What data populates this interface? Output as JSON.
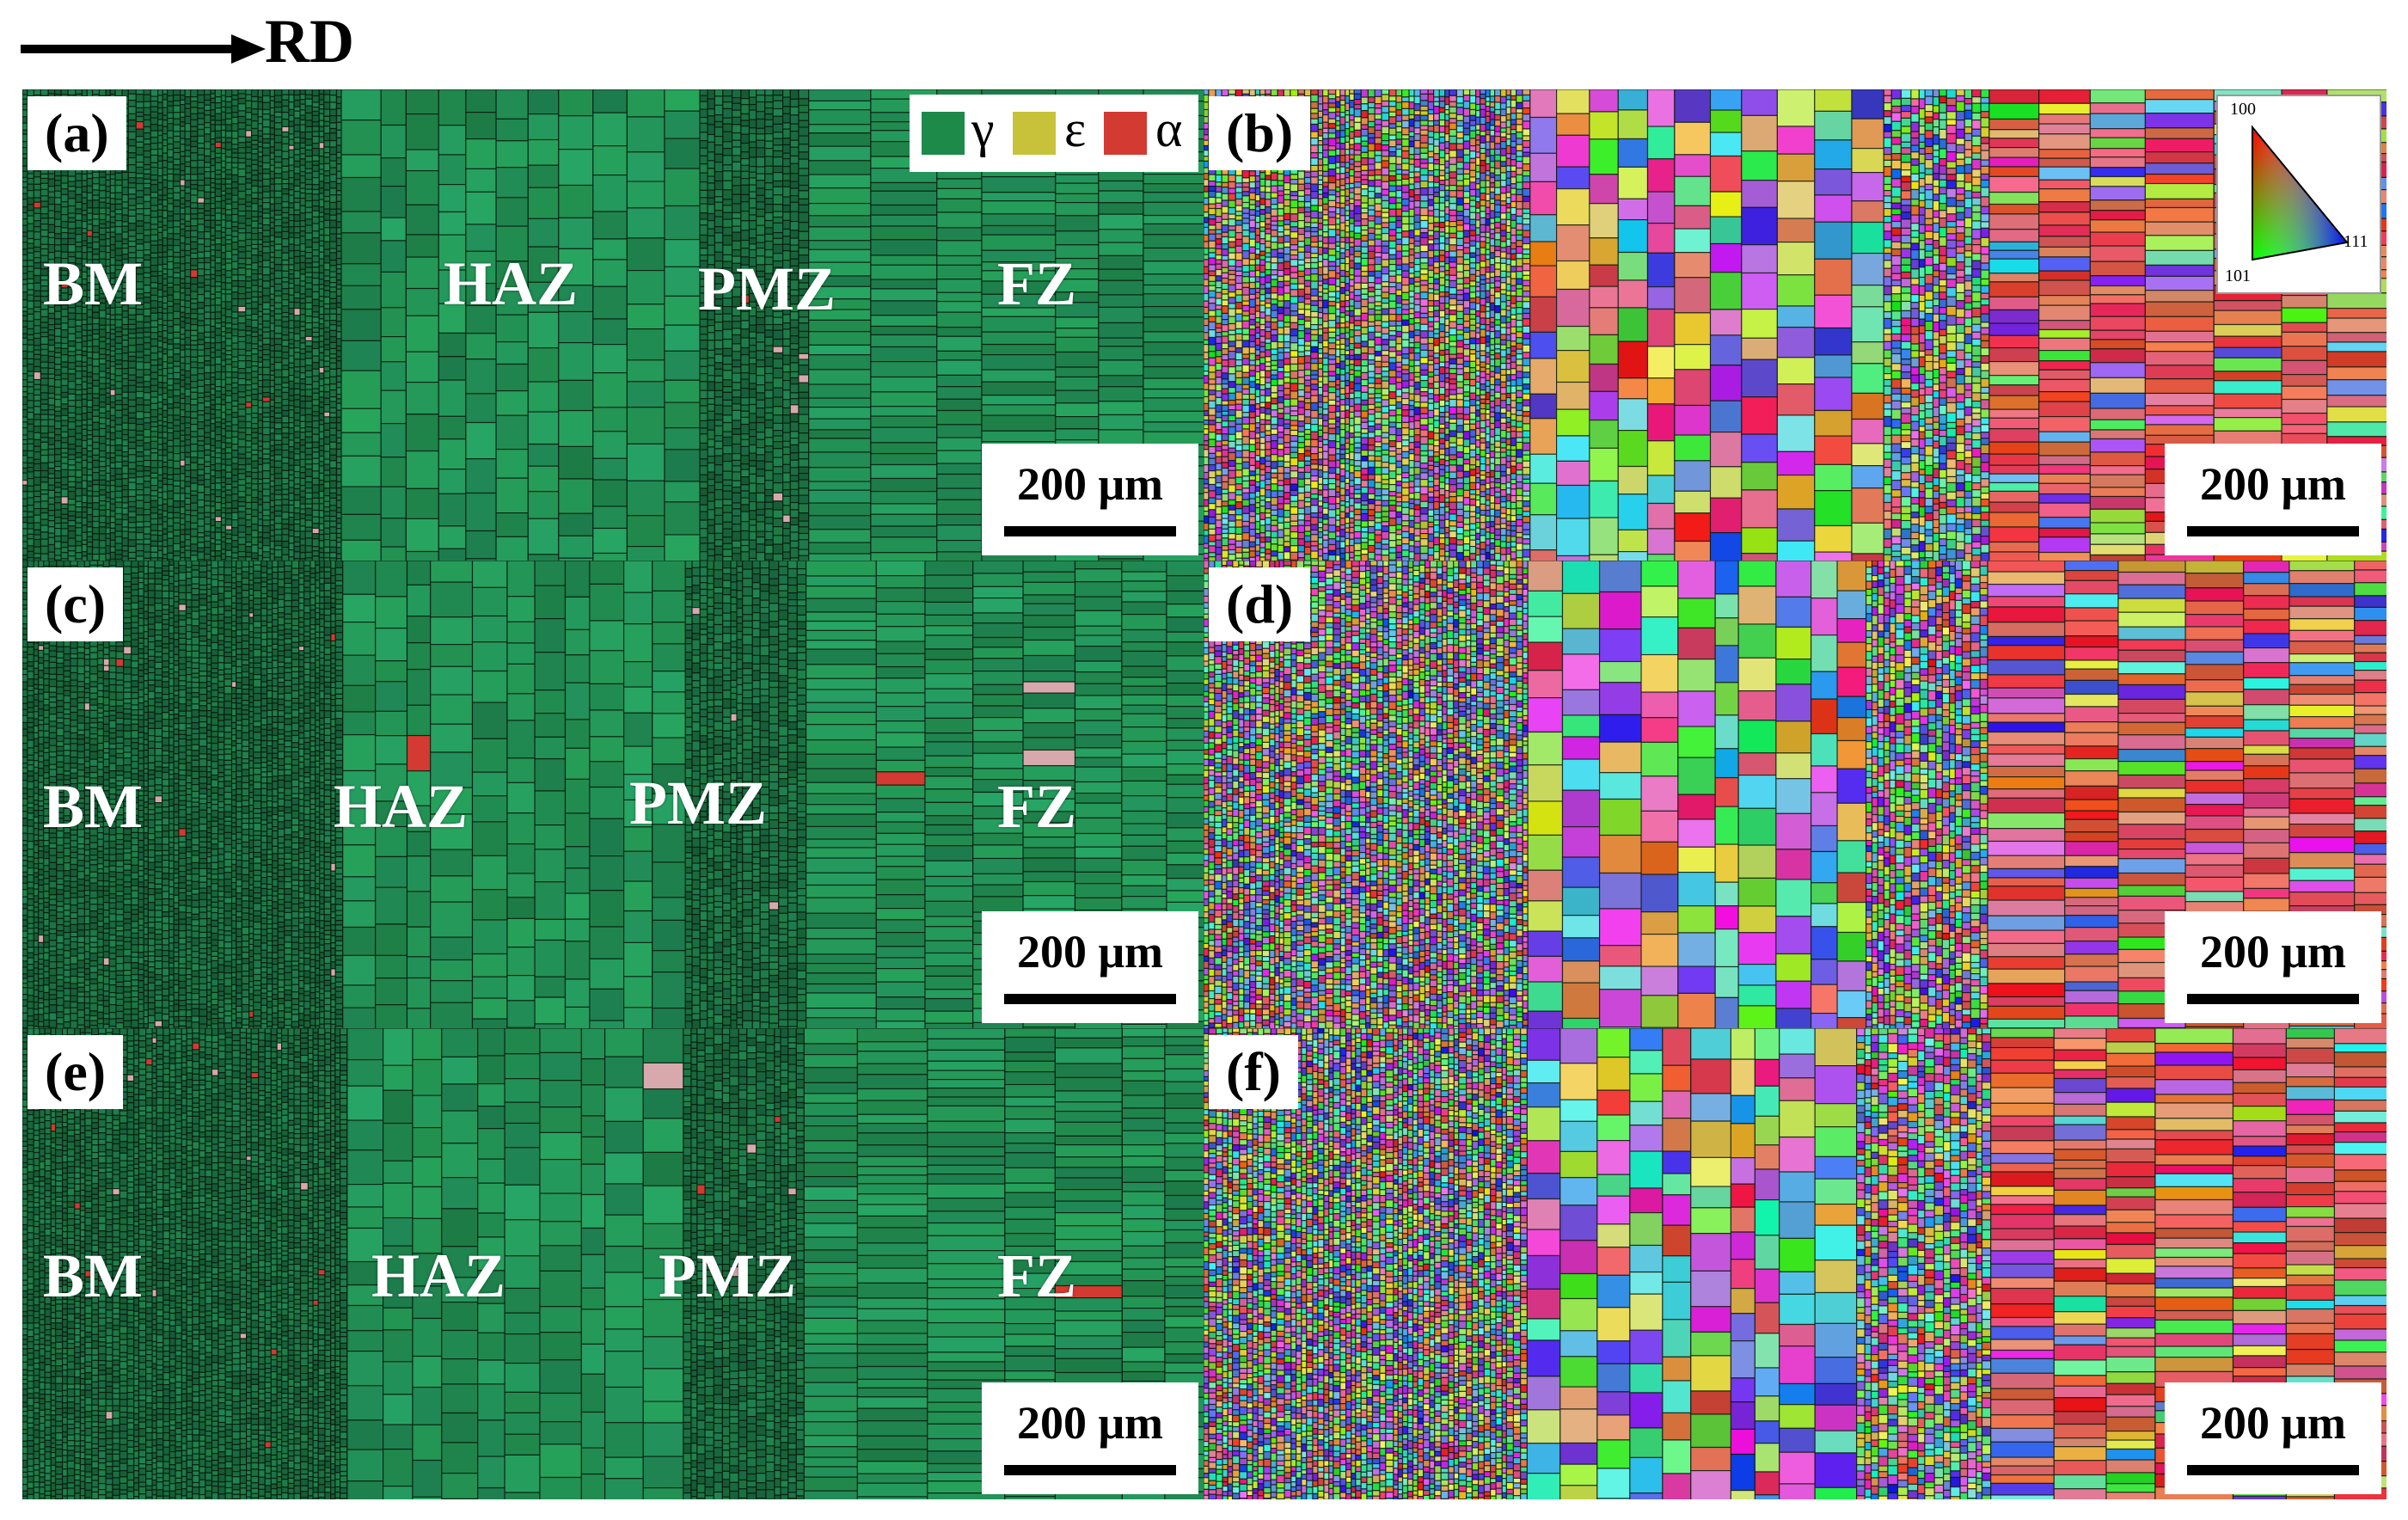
{
  "header": {
    "direction_label": "RD"
  },
  "legend": {
    "items": [
      {
        "symbol": "γ",
        "color": "#1d8a4a"
      },
      {
        "symbol": "ε",
        "color": "#c8c23a"
      },
      {
        "symbol": "α",
        "color": "#d23a32"
      }
    ]
  },
  "ipf_key": {
    "top": "100",
    "bottom_left": "101",
    "right": "111"
  },
  "panels": [
    {
      "tag": "(a)",
      "type": "phase",
      "scale": "200 μm",
      "zones": [
        "BM",
        "HAZ",
        "PMZ",
        "FZ"
      ]
    },
    {
      "tag": "(b)",
      "type": "ipf",
      "scale": "200 μm"
    },
    {
      "tag": "(c)",
      "type": "phase",
      "scale": "200 μm",
      "zones": [
        "BM",
        "HAZ",
        "PMZ",
        "FZ"
      ]
    },
    {
      "tag": "(d)",
      "type": "ipf",
      "scale": "200 μm"
    },
    {
      "tag": "(e)",
      "type": "phase",
      "scale": "200 μm",
      "zones": [
        "BM",
        "HAZ",
        "PMZ",
        "FZ"
      ]
    },
    {
      "tag": "(f)",
      "type": "ipf",
      "scale": "200 μm"
    }
  ]
}
